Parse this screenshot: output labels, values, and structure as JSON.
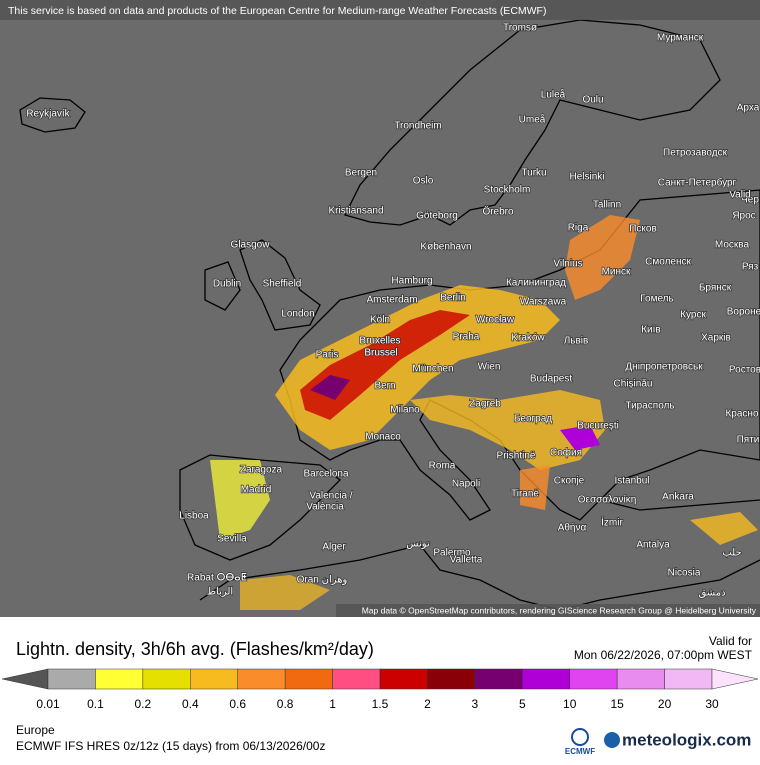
{
  "header": {
    "attribution": "This service is based on data and products of the European Centre for Medium-range Weather Forecasts (ECMWF)"
  },
  "map": {
    "credit": "Map data © OpenStreetMap contributors, rendering GIScience Research Group @ Heidelberg University",
    "places": [
      "Tromsø",
      "Мурманск",
      "Luleå",
      "Oulu",
      "Арха",
      "Reykjavík",
      "Trondheim",
      "Umeå",
      "Петрозаводск",
      "Bergen",
      "Turku",
      "Helsinki",
      "Oslo",
      "Stockholm",
      "Санкт-Петербург",
      "Чер",
      "Kristiansand",
      "Göteborg",
      "Örebro",
      "Tallinn",
      "Valid",
      "Ярос",
      "Riga",
      "Псков",
      "Glasgow",
      "København",
      "Москва",
      "Vilnius",
      "Минск",
      "Смоленск",
      "Ряз",
      "Dublin",
      "Sheffield",
      "Hamburg",
      "Калининград",
      "Брянск",
      "Гомель",
      "Amsterdam",
      "Berlin",
      "Warszawa",
      "London",
      "Köln",
      "Wrocław",
      "Курск",
      "Вороне",
      "Київ",
      "Bruxelles",
      "Brussel",
      "Praha",
      "Kraków",
      "Львів",
      "Харків",
      "Paris",
      "Дніпропетровськ",
      "Wien",
      "München",
      "Budapest",
      "Chișinău",
      "Ростов",
      "Bern",
      "Тирасполь",
      "Zagreb",
      "Milano",
      "Красно",
      "Београд",
      "București",
      "Monaco",
      "Пяти",
      "София",
      "Prishtinë",
      "Zaragoza",
      "Barcelona",
      "Roma",
      "Скопје",
      "Istanbul",
      "Madrid",
      "Napoli",
      "Tiranë",
      "Θεσσαλονίκη",
      "Ankara",
      "Valencia /",
      "València",
      "Lisboa",
      "İzmir",
      "Αθήνα",
      "Sevilla",
      "Palermo",
      "تونس",
      "Alger",
      "Antalya",
      "Valletta",
      "حلب",
      "Rabat ⵔⴱⴰⵟ",
      "Oran وهران",
      "الرباط",
      "Nicosia",
      "دمشق"
    ]
  },
  "legend": {
    "title": "Lightn. density, 3h/6h avg. (Flashes/km²/day)",
    "ticks": [
      0.01,
      0.1,
      0.2,
      0.4,
      0.6,
      0.8,
      1,
      1.5,
      2,
      3,
      5,
      10,
      15,
      20,
      30
    ],
    "colors": [
      "#555555",
      "#aaaaaa",
      "#ffff33",
      "#e6e000",
      "#f7bb20",
      "#fb8c2c",
      "#f26a10",
      "#ff4f82",
      "#cc0000",
      "#8a0008",
      "#760070",
      "#b000d8",
      "#df44f0",
      "#e88cf0",
      "#f2b8f6",
      "#fde2fd"
    ]
  },
  "valid": {
    "label": "Valid for",
    "time": "Mon 06/22/2026, 07:00pm WEST"
  },
  "footer": {
    "region": "Europe",
    "model": "ECMWF IFS HRES 0z/12z (15 days) from 06/13/2026/00z",
    "logo": "ECMWF",
    "brand": "meteologix.com"
  }
}
